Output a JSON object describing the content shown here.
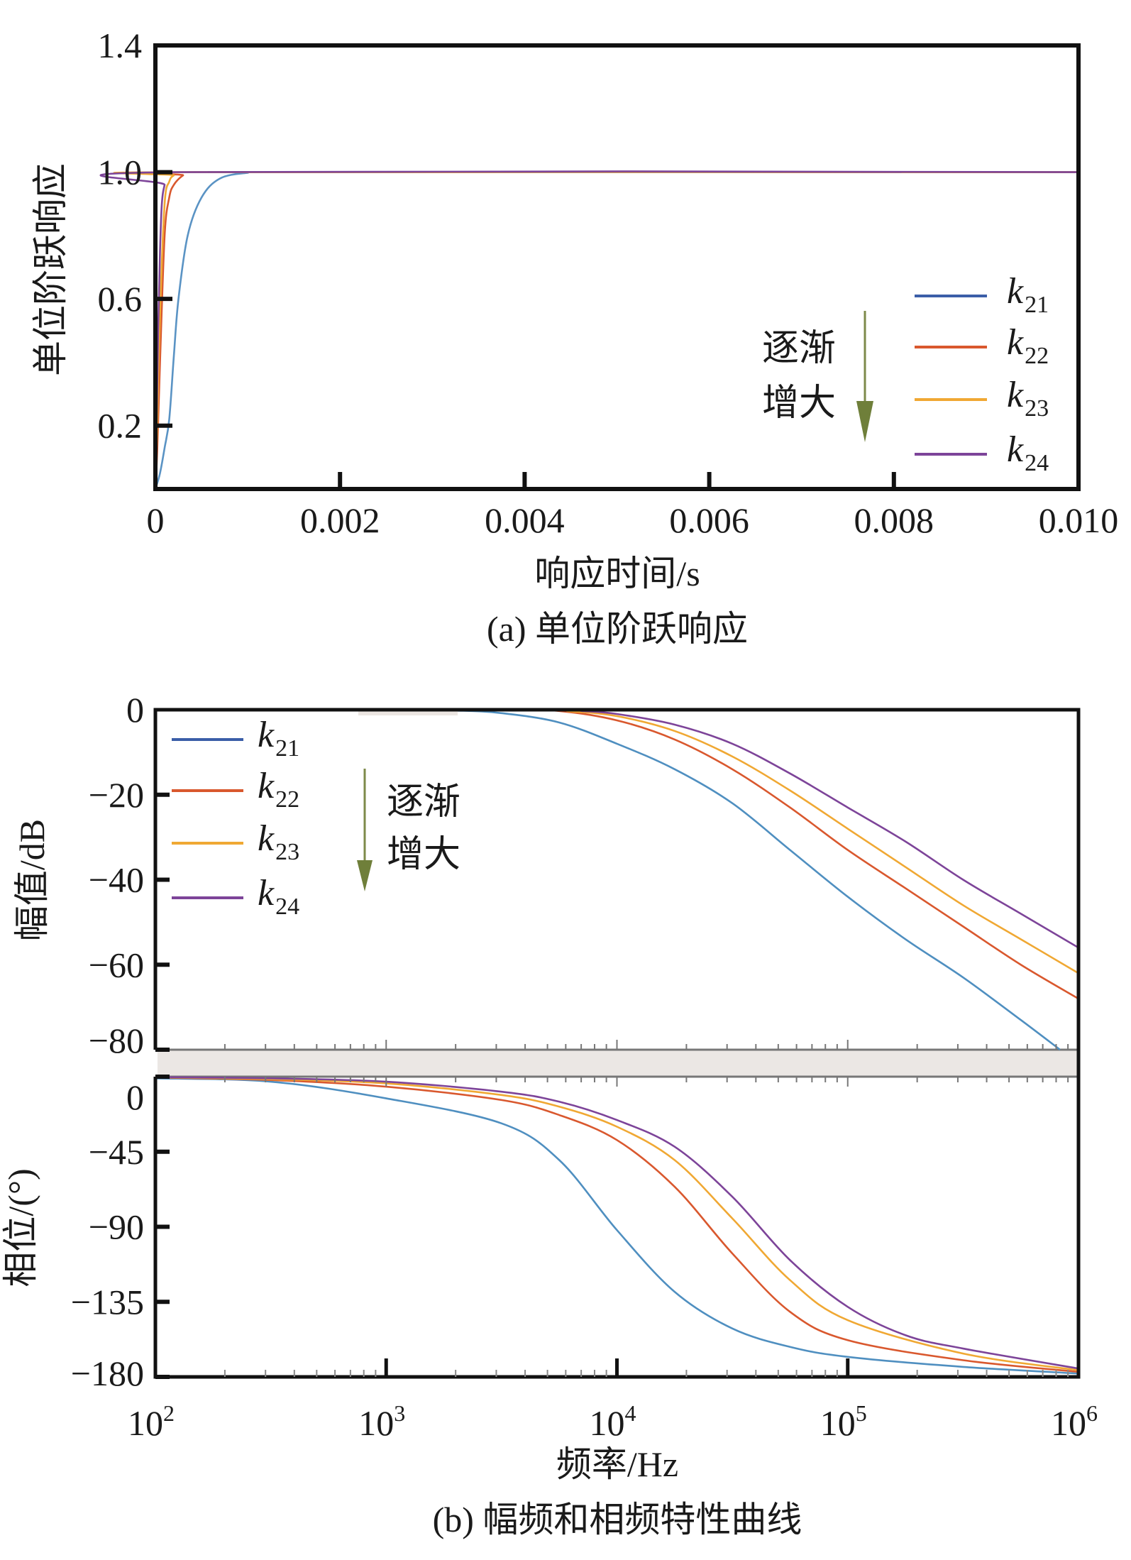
{
  "chart_data": [
    {
      "type": "line",
      "title": "(a) 单位阶跃响应",
      "xlabel": "响应时间/s",
      "ylabel": "单位阶跃响应",
      "xlim": [
        0,
        0.01
      ],
      "ylim": [
        0,
        1.4
      ],
      "xticks": [
        "0",
        "0.002",
        "0.004",
        "0.006",
        "0.008",
        "0.010"
      ],
      "xtick_values": [
        0,
        0.002,
        0.004,
        0.006,
        0.008,
        0.01
      ],
      "yticks": [
        "1.4",
        "1.0",
        "0.6",
        "0.2"
      ],
      "ytick_values": [
        1.4,
        1.0,
        0.6,
        0.2
      ],
      "legend_position": "right",
      "annotation": [
        "逐渐",
        "增大"
      ],
      "series": [
        {
          "name": "k21",
          "base": "k",
          "sub": "21",
          "color": "#5a93c4",
          "legend_color": "#3b5ea8",
          "x": [
            0,
            5e-05,
            0.0001,
            0.00015,
            0.0002,
            0.00025,
            0.00035,
            0.0005,
            0.0007,
            0.001,
            0.0013,
            0.01
          ],
          "y": [
            0,
            0.05,
            0.13,
            0.22,
            0.42,
            0.6,
            0.8,
            0.92,
            0.98,
            0.998,
            1.0,
            1.0
          ]
        },
        {
          "name": "k22",
          "base": "k",
          "sub": "22",
          "color": "#d9582e",
          "legend_color": "#d9582e",
          "x": [
            0,
            2e-05,
            5e-05,
            0.0001,
            0.00015,
            0.0002,
            0.0003,
            0.0004,
            0.01
          ],
          "y": [
            0,
            0.12,
            0.4,
            0.8,
            0.92,
            0.96,
            0.99,
            1.0,
            1.0
          ]
        },
        {
          "name": "k23",
          "base": "k",
          "sub": "23",
          "color": "#f0a833",
          "legend_color": "#f0a833",
          "x": [
            0,
            2e-05,
            5e-05,
            0.0001,
            0.00015,
            0.0002,
            0.0003,
            0.01
          ],
          "y": [
            0,
            0.2,
            0.55,
            0.9,
            0.97,
            0.99,
            1.0,
            1.0
          ]
        },
        {
          "name": "k24",
          "base": "k",
          "sub": "24",
          "color": "#7d4499",
          "legend_color": "#7d4499",
          "x": [
            0,
            1e-05,
            3e-05,
            5e-05,
            7e-05,
            0.0001,
            0.00015,
            0.01
          ],
          "y": [
            0,
            0.15,
            0.5,
            0.75,
            0.9,
            0.96,
            1.0,
            1.0
          ]
        }
      ]
    },
    {
      "type": "line",
      "title": "(b) 幅频和相频特性曲线",
      "xlabel": "频率/Hz",
      "xscale": "log",
      "xlim": [
        100,
        1000000
      ],
      "xticks": [
        {
          "base": "10",
          "exp": "2"
        },
        {
          "base": "10",
          "exp": "3"
        },
        {
          "base": "10",
          "exp": "4"
        },
        {
          "base": "10",
          "exp": "5"
        },
        {
          "base": "10",
          "exp": "6"
        }
      ],
      "xtick_log_values": [
        2,
        3,
        4,
        5,
        6
      ],
      "legend_position": "top-left",
      "annotation": [
        "逐渐",
        "增大"
      ],
      "magnitude": {
        "ylabel": "幅值/dB",
        "ylim": [
          -80,
          0
        ],
        "yticks": [
          "0",
          "−20",
          "−40",
          "−60",
          "−80"
        ],
        "ytick_values": [
          0,
          -20,
          -40,
          -60,
          -80
        ],
        "series": [
          {
            "name": "k21",
            "base": "k",
            "sub": "21",
            "color": "#4f8fc0",
            "legend_color": "#3b5ea8",
            "log_f": [
              2,
              3,
              3.3,
              3.5,
              3.75,
              4,
              4.25,
              4.5,
              4.75,
              5,
              5.25,
              5.5,
              5.75,
              5.92
            ],
            "db": [
              0,
              0,
              -0.2,
              -0.8,
              -3,
              -8,
              -14,
              -22,
              -33,
              -44,
              -54,
              -63,
              -73,
              -80
            ]
          },
          {
            "name": "k22",
            "base": "k",
            "sub": "22",
            "color": "#d9582e",
            "legend_color": "#d9582e",
            "log_f": [
              2,
              3.5,
              3.75,
              4,
              4.25,
              4.5,
              4.75,
              5,
              5.25,
              5.5,
              5.75,
              6
            ],
            "db": [
              0,
              0,
              -0.3,
              -2.5,
              -7,
              -14,
              -23,
              -33,
              -42,
              -51,
              -60,
              -68
            ]
          },
          {
            "name": "k23",
            "base": "k",
            "sub": "23",
            "color": "#f0a833",
            "legend_color": "#f0a833",
            "log_f": [
              2,
              3.6,
              3.8,
              4,
              4.25,
              4.5,
              4.75,
              5,
              5.25,
              5.5,
              5.75,
              6
            ],
            "db": [
              0,
              0,
              -0.4,
              -1.5,
              -5,
              -11,
              -19,
              -28,
              -37,
              -46,
              -54,
              -62
            ]
          },
          {
            "name": "k24",
            "base": "k",
            "sub": "24",
            "color": "#7d4499",
            "legend_color": "#7d4499",
            "log_f": [
              2,
              3.7,
              3.85,
              4,
              4.25,
              4.5,
              4.75,
              5,
              5.25,
              5.5,
              5.75,
              6
            ],
            "db": [
              0,
              0,
              -0.3,
              -1,
              -3.5,
              -8,
              -15,
              -23,
              -31,
              -40,
              -48,
              -56
            ]
          }
        ]
      },
      "phase": {
        "ylabel": "相位/(°)",
        "ylim": [
          -180,
          0
        ],
        "yticks": [
          "0",
          "−45",
          "−90",
          "−135",
          "−180"
        ],
        "ytick_values": [
          0,
          -45,
          -90,
          -135,
          -180
        ],
        "series": [
          {
            "name": "k21",
            "color": "#4f8fc0",
            "log_f": [
              2,
              2.5,
              3,
              3.5,
              3.75,
              4,
              4.25,
              4.5,
              4.75,
              5,
              5.5,
              6
            ],
            "deg": [
              -1,
              -3,
              -13,
              -28,
              -50,
              -92,
              -129,
              -151,
              -162,
              -168,
              -174,
              -178
            ]
          },
          {
            "name": "k22",
            "color": "#d9582e",
            "log_f": [
              2,
              2.5,
              3,
              3.5,
              3.75,
              4,
              4.25,
              4.5,
              4.75,
              5,
              5.5,
              6
            ],
            "deg": [
              -0.5,
              -2,
              -6,
              -14,
              -23,
              -38,
              -66,
              -106,
              -141,
              -158,
              -170,
              -177
            ]
          },
          {
            "name": "k23",
            "color": "#f0a833",
            "log_f": [
              2,
              2.5,
              3,
              3.5,
              3.75,
              4,
              4.25,
              4.5,
              4.75,
              5,
              5.5,
              6
            ],
            "deg": [
              -0.4,
              -1.5,
              -4,
              -11,
              -18,
              -30,
              -50,
              -85,
              -122,
              -146,
              -166,
              -176
            ]
          },
          {
            "name": "k24",
            "color": "#7d4499",
            "log_f": [
              2,
              2.5,
              3,
              3.5,
              3.75,
              4,
              4.25,
              4.5,
              4.75,
              5,
              5.25,
              5.5,
              6
            ],
            "deg": [
              -0.3,
              -1,
              -3,
              -9,
              -15,
              -26,
              -42,
              -72,
              -110,
              -138,
              -155,
              -163,
              -175
            ]
          }
        ]
      }
    }
  ]
}
